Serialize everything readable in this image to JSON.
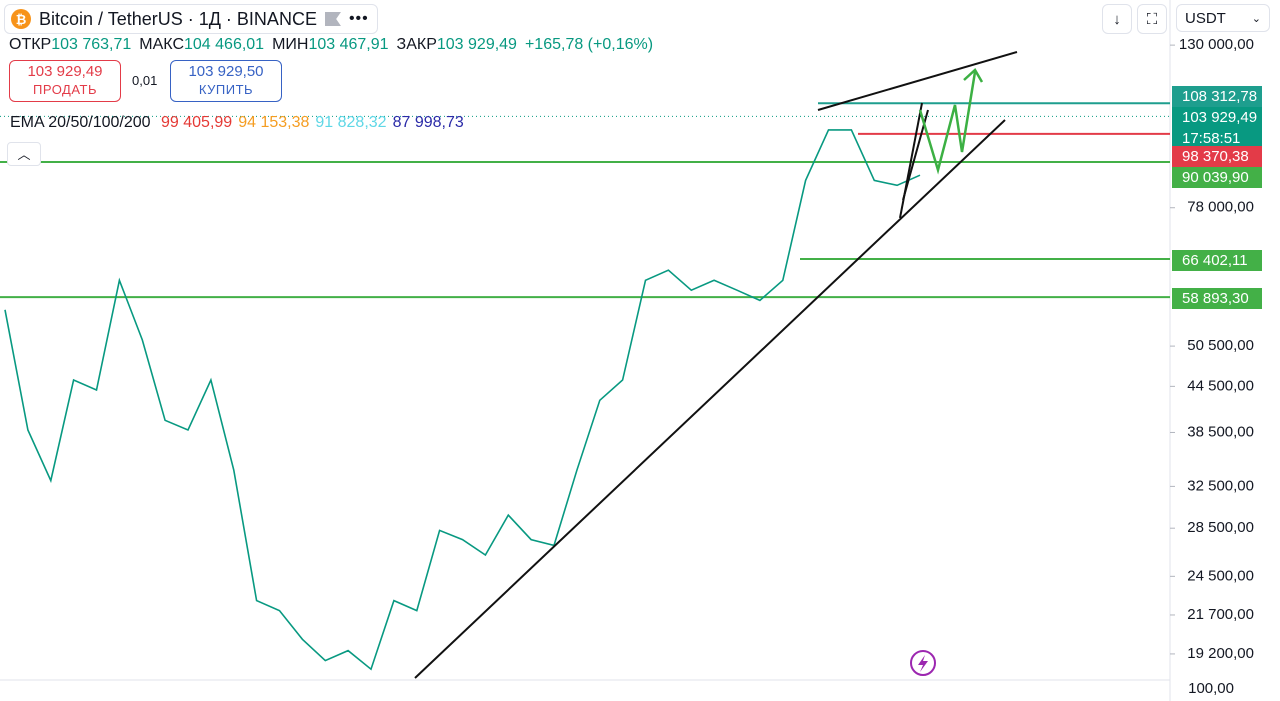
{
  "header": {
    "symbol": "Bitcoin / TetherUS · 1Д · BINANCE",
    "currency": "USDT"
  },
  "ohlc": {
    "items": [
      {
        "key": "ОТКР",
        "value": "103 763,71"
      },
      {
        "key": "МАКС",
        "value": "104 466,01"
      },
      {
        "key": "МИН",
        "value": "103 467,91"
      },
      {
        "key": "ЗАКР",
        "value": "103 929,49"
      }
    ],
    "change": "+165,78 (+0,16%)"
  },
  "trade": {
    "sell_price": "103 929,49",
    "sell_label": "ПРОДАТЬ",
    "spread": "0,01",
    "buy_price": "103 929,50",
    "buy_label": "КУПИТЬ"
  },
  "indicator": {
    "name": "EMA 20/50/100/200",
    "values": [
      {
        "text": "99 405,99",
        "color": "#e53935"
      },
      {
        "text": "94 153,38",
        "color": "#f59d22"
      },
      {
        "text": "91 828,32",
        "color": "#5fd7e6"
      },
      {
        "text": "87 998,73",
        "color": "#2b2ba8"
      }
    ]
  },
  "volume_axis": "100,00",
  "price_labels": [
    {
      "value": 108312.78,
      "label": "108 312,78",
      "color": "#1e9e8e",
      "line": true
    },
    {
      "value": 103929.49,
      "label": "103 929,49",
      "color": "#089981",
      "line": false,
      "timer": "17:58:51"
    },
    {
      "value": 98370.38,
      "label": "98 370,38",
      "color": "#e33b48",
      "line": true
    },
    {
      "value": 90039.9,
      "label": "90 039,90",
      "color": "#43b047",
      "line": true
    },
    {
      "value": 66402.11,
      "label": "66 402,11",
      "color": "#43b047",
      "line": true
    },
    {
      "value": 58893.3,
      "label": "58 893,30",
      "color": "#43b047",
      "line": true
    }
  ],
  "chart_data": {
    "type": "line",
    "log_scale": true,
    "color": "#089981",
    "ylim": [
      17690,
      149800
    ],
    "yticks": [
      {
        "value": 130000,
        "label": "130 000,00"
      },
      {
        "value": 78000,
        "label": "78 000,00"
      },
      {
        "value": 50500,
        "label": "50 500,00"
      },
      {
        "value": 44500,
        "label": "44 500,00"
      },
      {
        "value": 38500,
        "label": "38 500,00"
      },
      {
        "value": 32500,
        "label": "32 500,00"
      },
      {
        "value": 28500,
        "label": "28 500,00"
      },
      {
        "value": 24500,
        "label": "24 500,00"
      },
      {
        "value": 21700,
        "label": "21 700,00"
      },
      {
        "value": 19200,
        "label": "19 200,00"
      }
    ],
    "values": [
      56600,
      38800,
      33100,
      45400,
      44000,
      62100,
      51500,
      40000,
      38800,
      45400,
      34200,
      22700,
      22000,
      20100,
      18800,
      19400,
      18300,
      22700,
      22000,
      28300,
      27500,
      26200,
      29700,
      27500,
      27000,
      34200,
      42600,
      45400,
      62100,
      64100,
      60200,
      62100,
      60200,
      58300,
      62100,
      85000,
      99600,
      99600,
      85000,
      83700,
      86400
    ]
  }
}
